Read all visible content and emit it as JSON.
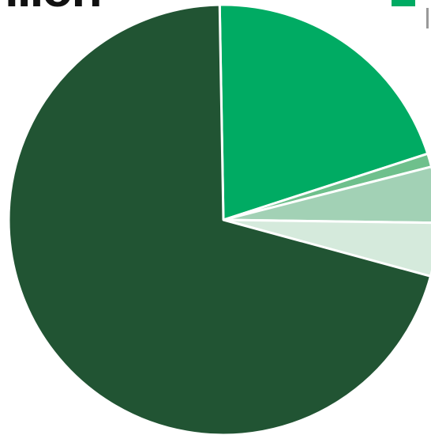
{
  "title": "illon",
  "legend": {
    "first_series_color": "#00ab63"
  },
  "chart_data": {
    "type": "pie",
    "title": "illon",
    "legend_placement": "top-right",
    "slices": [
      {
        "value": 70.5,
        "color": "#215433"
      },
      {
        "value": 20.3,
        "color": "#00ab63"
      },
      {
        "value": 1.0,
        "color": "#6ec08c"
      },
      {
        "value": 4.2,
        "color": "#a2d1b5"
      },
      {
        "value": 4.0,
        "color": "#d5eadc"
      }
    ]
  }
}
